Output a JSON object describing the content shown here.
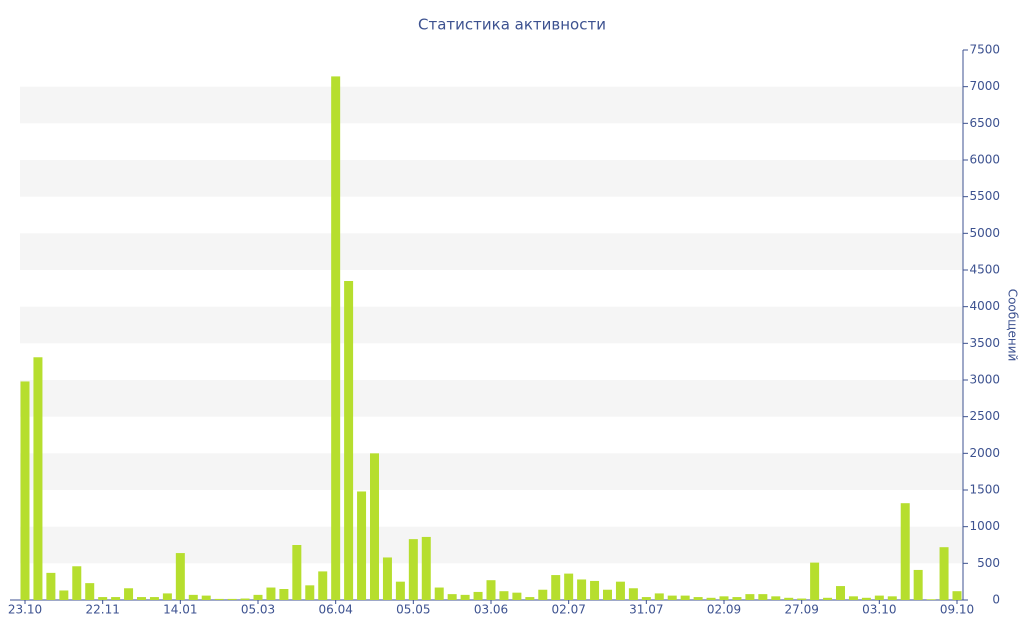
{
  "chart_data": {
    "type": "bar",
    "title": "Статистика активности",
    "y_label": "Сообщений",
    "categories": [
      "23.10",
      null,
      null,
      null,
      null,
      null,
      "22.11",
      null,
      null,
      null,
      null,
      null,
      "14.01",
      null,
      null,
      null,
      null,
      null,
      "05.03",
      null,
      null,
      null,
      null,
      null,
      "06.04",
      null,
      null,
      null,
      null,
      null,
      "05.05",
      null,
      null,
      null,
      null,
      null,
      "03.06",
      null,
      null,
      null,
      null,
      null,
      "02.07",
      null,
      null,
      null,
      null,
      null,
      "31.07",
      null,
      null,
      null,
      null,
      null,
      "02.09",
      null,
      null,
      null,
      null,
      null,
      "27.09",
      null,
      null,
      null,
      null,
      null,
      "03.10",
      null,
      null,
      null,
      null,
      null,
      "09.10"
    ],
    "values": [
      2980,
      3310,
      370,
      130,
      460,
      230,
      40,
      40,
      160,
      40,
      40,
      90,
      640,
      70,
      60,
      15,
      15,
      20,
      70,
      170,
      150,
      750,
      200,
      390,
      7140,
      4350,
      1480,
      2000,
      580,
      250,
      830,
      860,
      170,
      80,
      70,
      110,
      270,
      120,
      100,
      40,
      140,
      340,
      360,
      280,
      260,
      140,
      250,
      160,
      40,
      90,
      60,
      60,
      40,
      30,
      50,
      40,
      80,
      80,
      50,
      30,
      20,
      510,
      30,
      190,
      50,
      30,
      60,
      50,
      1320,
      410,
      10,
      720,
      120
    ],
    "color": "#b6de2e",
    "ylim": [
      0,
      7500
    ],
    "yticks": [
      0,
      500,
      1000,
      1500,
      2000,
      2500,
      3000,
      3500,
      4000,
      4500,
      5000,
      5500,
      6000,
      6500,
      7000,
      7500
    ],
    "grid": "bands",
    "y_axis_side": "right"
  }
}
